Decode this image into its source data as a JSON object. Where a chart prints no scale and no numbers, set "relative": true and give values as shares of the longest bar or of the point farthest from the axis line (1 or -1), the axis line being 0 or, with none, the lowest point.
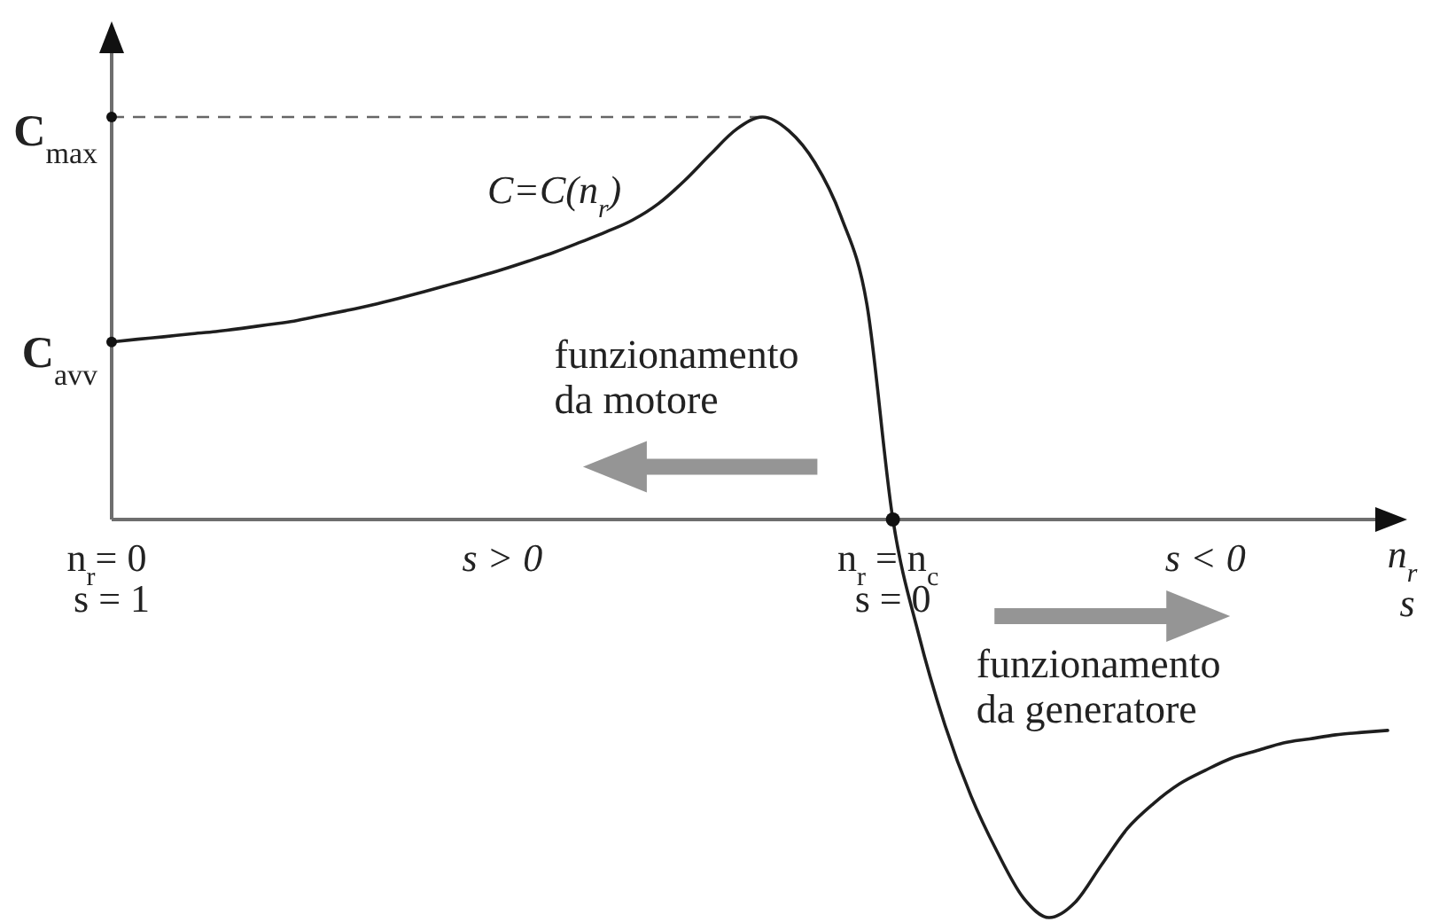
{
  "chart_data": {
    "type": "line",
    "relative": true,
    "categories": [
      "n$_{r}$= 0\ns = 1",
      null,
      null,
      null,
      null,
      null,
      null,
      null,
      null,
      null,
      null,
      null,
      null,
      null,
      null,
      null,
      null,
      null,
      null,
      null,
      null,
      null,
      null,
      null,
      null,
      null,
      null,
      null,
      null,
      null,
      "n$_{r}$ = n$_{c}$\ns = 0",
      null,
      null,
      null,
      null,
      null,
      null,
      null,
      null,
      null,
      null,
      null,
      null,
      null,
      null,
      null,
      null,
      null,
      null,
      null
    ],
    "series": [
      {
        "name": "C=C(n$_{r}$)",
        "color": "#1e1e1e",
        "values": [
          0.441,
          0.448,
          0.454,
          0.461,
          0.467,
          0.475,
          0.484,
          0.493,
          0.506,
          0.519,
          0.533,
          0.549,
          0.566,
          0.584,
          0.602,
          0.621,
          0.642,
          0.664,
          0.689,
          0.715,
          0.744,
          0.785,
          0.842,
          0.908,
          0.97,
          1.0,
          0.966,
          0.887,
          0.754,
          0.535,
          0,
          -0.288,
          -0.511,
          -0.687,
          -0.825,
          -0.939,
          -0.989,
          -0.951,
          -0.859,
          -0.768,
          -0.706,
          -0.657,
          -0.623,
          -0.593,
          -0.574,
          -0.555,
          -0.545,
          -0.535,
          -0.529,
          -0.524
        ]
      }
    ],
    "xlabel": "n$_{r}$\ns",
    "ref_lines": [
      {
        "axis": "y",
        "value": 1,
        "label": "C$_{max}$",
        "color": "#666666",
        "line_style": "dashed"
      }
    ],
    "annotations": [
      "C$_{avv}$",
      "s > 0",
      "s < 0",
      "funzionamento\nda motore",
      "funzionamento\nda generatore"
    ]
  }
}
